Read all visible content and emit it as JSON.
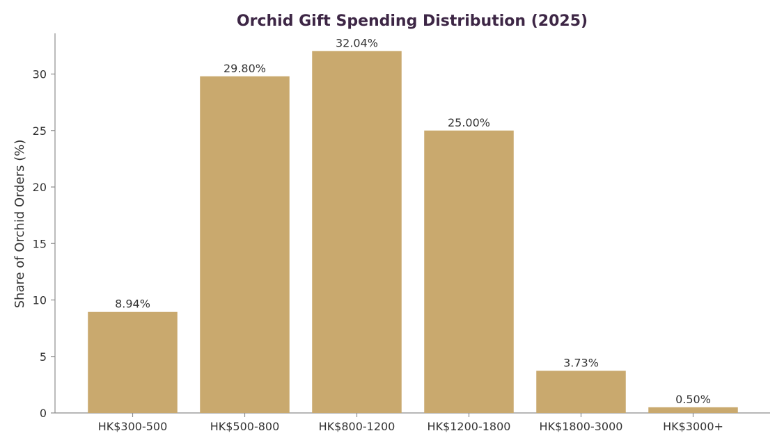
{
  "chart_data": {
    "type": "bar",
    "title": "Orchid Gift Spending Distribution (2025)",
    "xlabel": "",
    "ylabel": "Share of Orchid Orders (%)",
    "categories": [
      "HK$300-500",
      "HK$500-800",
      "HK$800-1200",
      "HK$1200-1800",
      "HK$1800-3000",
      "HK$3000+"
    ],
    "values": [
      8.94,
      29.8,
      32.04,
      25.0,
      3.73,
      0.5
    ],
    "data_labels": [
      "8.94%",
      "29.80%",
      "32.04%",
      "25.00%",
      "3.73%",
      "0.50%"
    ],
    "ylim": [
      0,
      33.6
    ],
    "yticks": [
      0,
      5,
      10,
      15,
      20,
      25,
      30
    ],
    "grid": false,
    "legend": "none"
  },
  "colors": {
    "bar": "#c9a96e",
    "title": "#3d2645",
    "text": "#333333",
    "axis": "#8c8c8c"
  }
}
